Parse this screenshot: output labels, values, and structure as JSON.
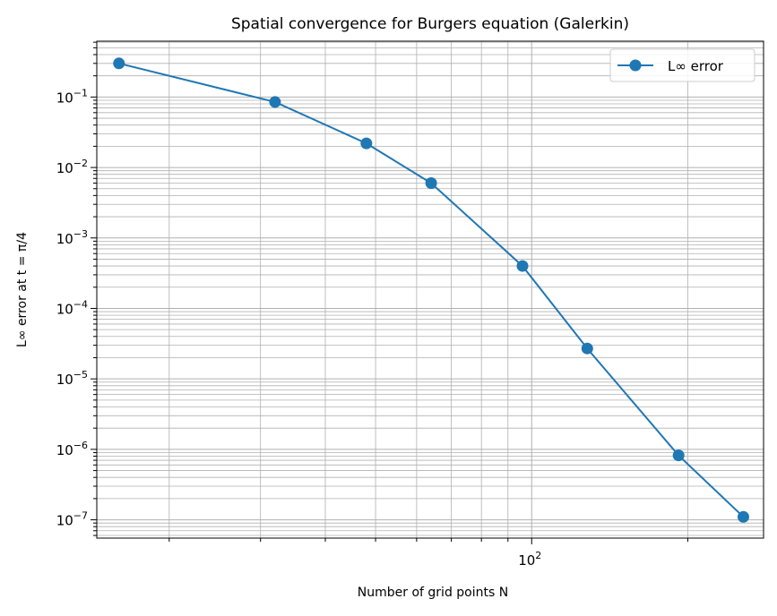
{
  "chart_data": {
    "type": "line",
    "title": "Spatial convergence for Burgers equation (Galerkin)",
    "xlabel": "Number of grid points N",
    "ylabel": "L∞ error at t = π/4",
    "xscale": "log",
    "yscale": "log",
    "xlim": [
      14.5,
      280
    ],
    "ylim": [
      5.5e-08,
      0.62
    ],
    "x_tick_labels": [
      {
        "value": 100,
        "base": "10",
        "exp": "2"
      }
    ],
    "y_tick_labels": [
      {
        "value": 0.1,
        "base": "10",
        "exp": "−1"
      },
      {
        "value": 0.01,
        "base": "10",
        "exp": "−2"
      },
      {
        "value": 0.001,
        "base": "10",
        "exp": "−3"
      },
      {
        "value": 0.0001,
        "base": "10",
        "exp": "−4"
      },
      {
        "value": 1e-05,
        "base": "10",
        "exp": "−5"
      },
      {
        "value": 1e-06,
        "base": "10",
        "exp": "−6"
      },
      {
        "value": 1e-07,
        "base": "10",
        "exp": "−7"
      }
    ],
    "grid": "major and minor",
    "legend_position": "top-right",
    "series": [
      {
        "name": "L∞ error",
        "color": "#1f77b4",
        "marker": "circle",
        "x": [
          16,
          32,
          48,
          64,
          96,
          128,
          192,
          256
        ],
        "y": [
          0.3,
          0.085,
          0.022,
          0.006,
          0.0004,
          2.7e-05,
          8.2e-07,
          1.1e-07
        ]
      }
    ]
  }
}
